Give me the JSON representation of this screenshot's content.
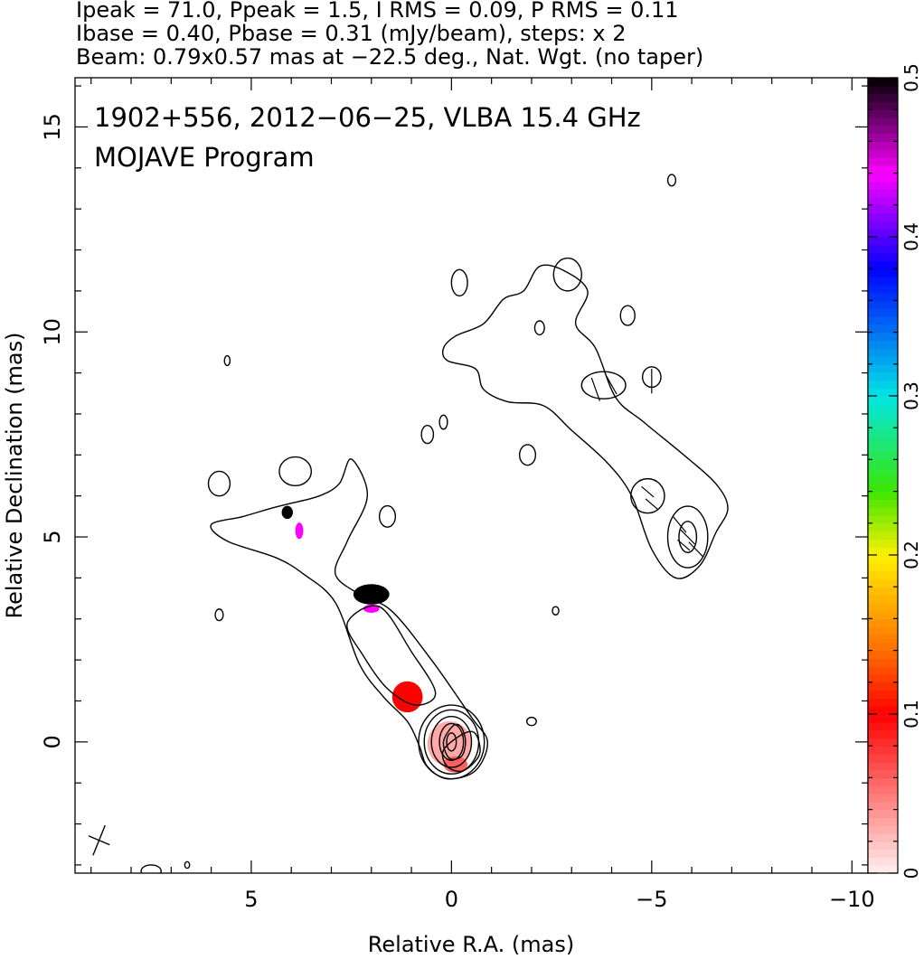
{
  "header": {
    "line1": "Ipeak = 71.0, Ppeak = 1.5, I RMS = 0.09, P RMS = 0.11",
    "line2": "Ibase = 0.40, Pbase = 0.31 (mJy/beam), steps: x 2",
    "line3": "Beam: 0.79x0.57 mas at −22.5 deg., Nat. Wgt. (no taper)"
  },
  "chart_data": {
    "type": "heatmap",
    "title": "1902+556, 2012−06−25, VLBA 15.4 GHz",
    "subtitle": "MOJAVE Program",
    "xlabel": "Relative R.A. (mas)",
    "ylabel": "Relative Declination (mas)",
    "xlim": [
      9.4,
      -10.4
    ],
    "ylim": [
      -3.2,
      16.2
    ],
    "x_ticks": [
      5,
      0,
      -5,
      -10
    ],
    "x_tick_labels": [
      "5",
      "0",
      "−5",
      "−10"
    ],
    "y_ticks": [
      0,
      5,
      10,
      15
    ],
    "y_tick_labels": [
      "0",
      "5",
      "10",
      "15"
    ],
    "colorbar": {
      "min": 0,
      "max": 0.5,
      "ticks": [
        0,
        0.1,
        0.2,
        0.3,
        0.4,
        0.5
      ],
      "tick_labels": [
        "0",
        "0.1",
        "0.2",
        "0.3",
        "0.4",
        "0.5"
      ]
    },
    "core_contours": [
      {
        "cx": 0,
        "cy": 0,
        "rx": 0.12,
        "ry": 0.22
      },
      {
        "cx": 0,
        "cy": 0,
        "rx": 0.3,
        "ry": 0.45
      },
      {
        "cx": 0,
        "cy": 0,
        "rx": 0.5,
        "ry": 0.62
      },
      {
        "cx": 0,
        "cy": 0,
        "rx": 0.68,
        "ry": 0.78
      },
      {
        "cx": 0,
        "cy": 0,
        "rx": 0.82,
        "ry": 0.9
      }
    ],
    "outer_contours": [
      [
        [
          0.8,
          -0.1
        ],
        [
          1.1,
          0.5
        ],
        [
          1.7,
          1.1
        ],
        [
          2.3,
          1.9
        ],
        [
          2.9,
          3.4
        ],
        [
          3.7,
          4.1
        ],
        [
          4.4,
          4.5
        ],
        [
          5.6,
          4.9
        ],
        [
          6.0,
          5.3
        ],
        [
          5.2,
          5.5
        ],
        [
          4.5,
          5.7
        ],
        [
          4.1,
          5.8
        ],
        [
          3.3,
          6.0
        ],
        [
          2.8,
          6.3
        ],
        [
          2.5,
          6.9
        ],
        [
          2.1,
          6.0
        ],
        [
          2.6,
          4.9
        ],
        [
          2.9,
          4.1
        ],
        [
          2.3,
          3.6
        ],
        [
          1.5,
          3.2
        ],
        [
          0.5,
          2.0
        ],
        [
          -0.5,
          0.6
        ],
        [
          -0.9,
          0.0
        ],
        [
          -0.6,
          -0.7
        ],
        [
          0.1,
          -0.9
        ],
        [
          0.6,
          -0.6
        ]
      ],
      [
        [
          1.6,
          1.3
        ],
        [
          2.2,
          2.1
        ],
        [
          2.6,
          2.9
        ],
        [
          1.8,
          3.3
        ],
        [
          1.0,
          2.2
        ],
        [
          0.4,
          1.2
        ],
        [
          0.9,
          0.9
        ]
      ],
      [
        [
          -0.3,
          0.2
        ],
        [
          -0.6,
          0.2
        ],
        [
          -0.7,
          -0.3
        ],
        [
          -0.3,
          -0.7
        ],
        [
          0.1,
          -0.6
        ],
        [
          0.2,
          -0.2
        ]
      ],
      [
        [
          -0.05,
          0.4
        ],
        [
          -0.25,
          0.35
        ],
        [
          -0.35,
          0.0
        ],
        [
          -0.25,
          -0.35
        ],
        [
          0.05,
          -0.4
        ],
        [
          0.2,
          0.0
        ]
      ]
    ],
    "north_contour": [
      [
        -6.2,
        4.3
      ],
      [
        -6.6,
        5.1
      ],
      [
        -6.9,
        5.7
      ],
      [
        -6.6,
        6.3
      ],
      [
        -5.8,
        7.0
      ],
      [
        -4.8,
        7.8
      ],
      [
        -4.1,
        8.4
      ],
      [
        -3.6,
        9.6
      ],
      [
        -3.1,
        10.2
      ],
      [
        -3.4,
        11.0
      ],
      [
        -2.8,
        11.5
      ],
      [
        -2.2,
        11.6
      ],
      [
        -1.8,
        11.0
      ],
      [
        -1.3,
        10.8
      ],
      [
        -0.8,
        10.2
      ],
      [
        -0.1,
        9.9
      ],
      [
        0.2,
        9.6
      ],
      [
        0.1,
        9.3
      ],
      [
        -0.6,
        9.1
      ],
      [
        -0.8,
        8.6
      ],
      [
        -1.4,
        8.3
      ],
      [
        -2.3,
        8.2
      ],
      [
        -3.0,
        7.6
      ],
      [
        -3.9,
        6.8
      ],
      [
        -4.5,
        6.0
      ],
      [
        -5.0,
        4.7
      ],
      [
        -5.6,
        4.0
      ]
    ],
    "north_inner": [
      {
        "cx": -5.9,
        "cy": 5.0,
        "rx": 0.5,
        "ry": 0.75
      },
      {
        "cx": -5.9,
        "cy": 5.0,
        "rx": 0.22,
        "ry": 0.38
      },
      {
        "cx": -4.9,
        "cy": 6.0,
        "rx": 0.42,
        "ry": 0.42
      },
      {
        "cx": -3.8,
        "cy": 8.7,
        "rx": 0.55,
        "ry": 0.33
      }
    ],
    "islands": [
      {
        "cx": -5.5,
        "cy": 13.7,
        "rx": 0.1,
        "ry": 0.14
      },
      {
        "cx": -2.9,
        "cy": 11.4,
        "rx": 0.35,
        "ry": 0.4
      },
      {
        "cx": -0.2,
        "cy": 11.2,
        "rx": 0.2,
        "ry": 0.32
      },
      {
        "cx": -2.2,
        "cy": 10.1,
        "rx": 0.12,
        "ry": 0.17
      },
      {
        "cx": -4.4,
        "cy": 10.4,
        "rx": 0.18,
        "ry": 0.24
      },
      {
        "cx": -5.0,
        "cy": 8.9,
        "rx": 0.23,
        "ry": 0.25
      },
      {
        "cx": 0.2,
        "cy": 7.8,
        "rx": 0.1,
        "ry": 0.17
      },
      {
        "cx": 0.6,
        "cy": 7.5,
        "rx": 0.15,
        "ry": 0.22
      },
      {
        "cx": -1.9,
        "cy": 7.0,
        "rx": 0.2,
        "ry": 0.25
      },
      {
        "cx": 3.9,
        "cy": 6.6,
        "rx": 0.4,
        "ry": 0.35
      },
      {
        "cx": 5.8,
        "cy": 6.3,
        "rx": 0.27,
        "ry": 0.3
      },
      {
        "cx": 1.6,
        "cy": 5.5,
        "rx": 0.2,
        "ry": 0.26
      },
      {
        "cx": 5.6,
        "cy": 9.3,
        "rx": 0.07,
        "ry": 0.12
      },
      {
        "cx": 5.8,
        "cy": 3.1,
        "rx": 0.1,
        "ry": 0.14
      },
      {
        "cx": -2.6,
        "cy": 3.2,
        "rx": 0.08,
        "ry": 0.1
      },
      {
        "cx": -2.0,
        "cy": 0.5,
        "rx": 0.12,
        "ry": 0.1
      },
      {
        "cx": 7.5,
        "cy": -3.15,
        "rx": 0.25,
        "ry": 0.15
      },
      {
        "cx": 6.6,
        "cy": -3.0,
        "rx": 0.06,
        "ry": 0.08
      }
    ],
    "pol_patches": [
      {
        "cx": 2.0,
        "cy": 3.6,
        "rx": 0.45,
        "ry": 0.25,
        "value": 0.5
      },
      {
        "cx": 4.1,
        "cy": 5.6,
        "rx": 0.14,
        "ry": 0.16,
        "value": 0.5
      },
      {
        "cx": 3.8,
        "cy": 5.15,
        "rx": 0.1,
        "ry": 0.2,
        "value": 0.44
      },
      {
        "cx": 2.0,
        "cy": 3.25,
        "rx": 0.2,
        "ry": 0.1,
        "value": 0.44
      },
      {
        "cx": 1.1,
        "cy": 1.1,
        "rx": 0.38,
        "ry": 0.38,
        "value": 0.1
      },
      {
        "cx": 0.05,
        "cy": -0.05,
        "rx": 0.55,
        "ry": 0.55,
        "value": 0.03
      },
      {
        "cx": -0.1,
        "cy": -0.55,
        "rx": 0.3,
        "ry": 0.2,
        "value": 0.06
      }
    ],
    "evpa_ticks": [
      {
        "x": -5.9,
        "y": 5.0,
        "angle": 45,
        "len": 0.5
      },
      {
        "x": -5.7,
        "y": 5.3,
        "angle": 40,
        "len": 0.5
      },
      {
        "x": -6.1,
        "y": 4.7,
        "angle": 45,
        "len": 0.5
      },
      {
        "x": -5.8,
        "y": 4.8,
        "angle": 50,
        "len": 0.4
      },
      {
        "x": -4.9,
        "y": 6.1,
        "angle": 50,
        "len": 0.4
      },
      {
        "x": -5.0,
        "y": 5.8,
        "angle": 50,
        "len": 0.4
      },
      {
        "x": -3.6,
        "y": 8.6,
        "angle": 20,
        "len": 0.6
      },
      {
        "x": -4.0,
        "y": 8.7,
        "angle": 30,
        "len": 0.5
      },
      {
        "x": -5.0,
        "y": 8.8,
        "angle": 0,
        "len": 0.6
      }
    ],
    "beam": {
      "x": 8.8,
      "y": -2.4,
      "major": 0.79,
      "minor": 0.57,
      "pa": -22.5
    }
  }
}
